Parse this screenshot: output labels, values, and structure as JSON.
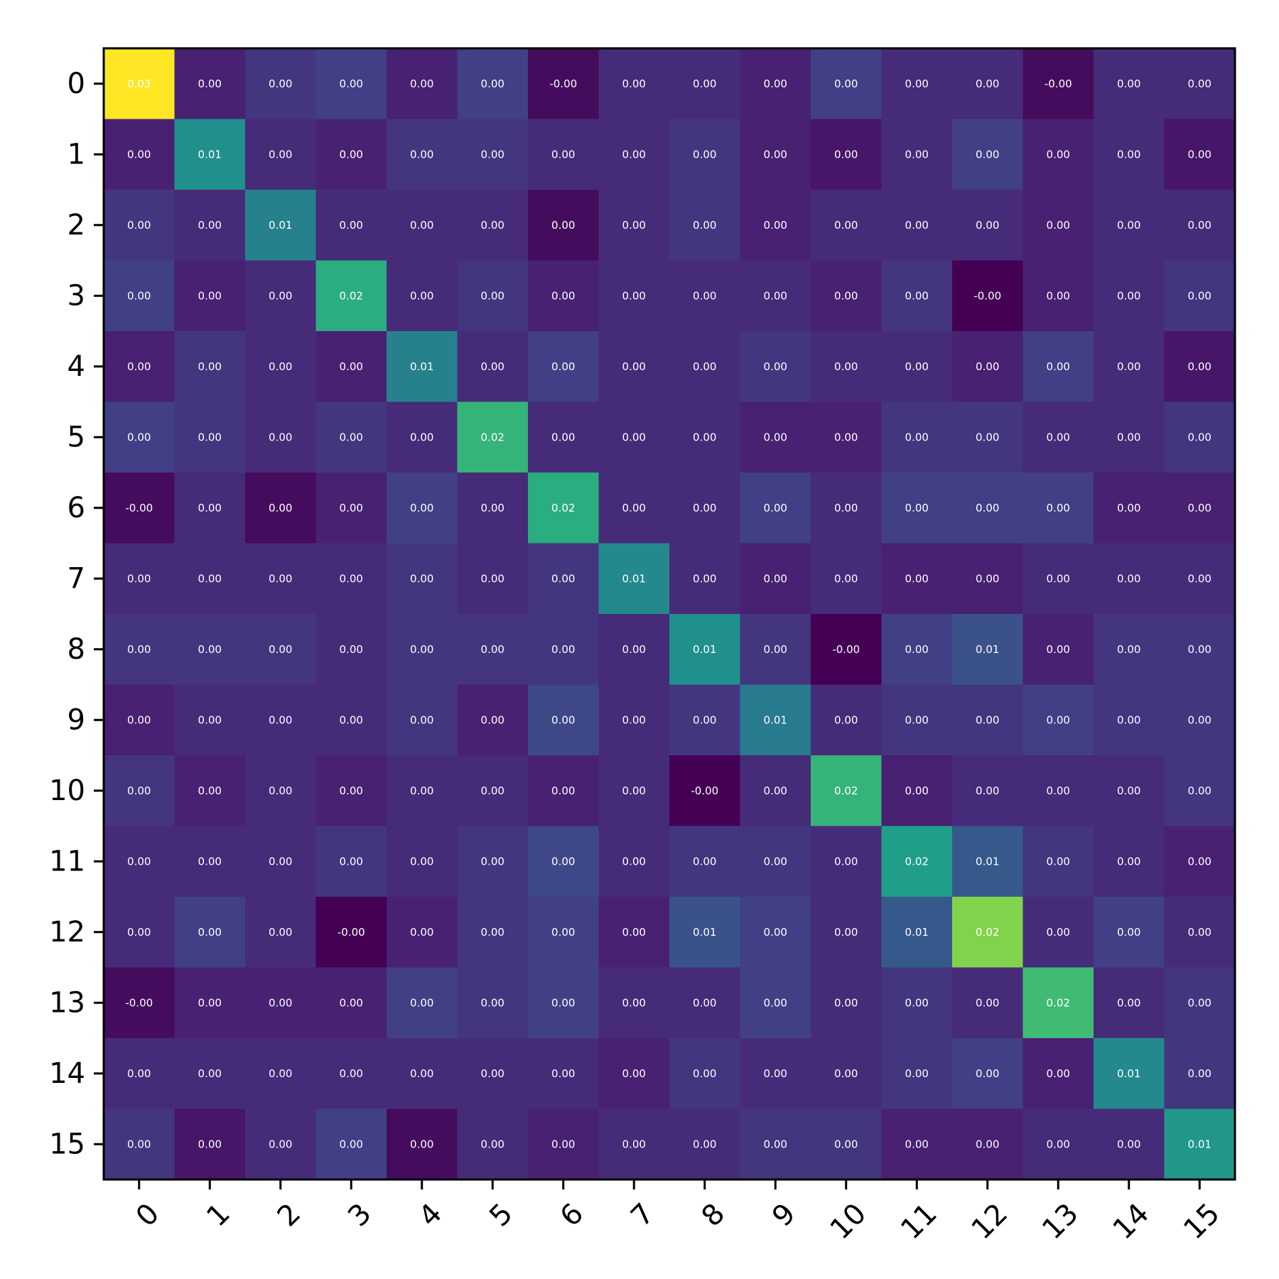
{
  "chart_data": {
    "type": "heatmap",
    "title": "",
    "xlabel": "",
    "ylabel": "",
    "x_categories": [
      "0",
      "1",
      "2",
      "3",
      "4",
      "5",
      "6",
      "7",
      "8",
      "9",
      "10",
      "11",
      "12",
      "13",
      "14",
      "15"
    ],
    "y_categories": [
      "0",
      "1",
      "2",
      "3",
      "4",
      "5",
      "6",
      "7",
      "8",
      "9",
      "10",
      "11",
      "12",
      "13",
      "14",
      "15"
    ],
    "colormap": "viridis",
    "color_range": [
      -0.002,
      0.03
    ],
    "value_format": "2 decimals",
    "values": [
      [
        0.03,
        0.001,
        0.003,
        0.004,
        0.001,
        0.004,
        -0.001,
        0.002,
        0.002,
        0.001,
        0.004,
        0.002,
        0.002,
        -0.001,
        0.002,
        0.002
      ],
      [
        0.001,
        0.014,
        0.002,
        0.001,
        0.003,
        0.003,
        0.002,
        0.002,
        0.003,
        0.001,
        0.0,
        0.002,
        0.004,
        0.001,
        0.002,
        0.0
      ],
      [
        0.003,
        0.002,
        0.012,
        0.002,
        0.002,
        0.002,
        -0.001,
        0.002,
        0.003,
        0.001,
        0.002,
        0.002,
        0.002,
        0.001,
        0.002,
        0.002
      ],
      [
        0.004,
        0.001,
        0.002,
        0.018,
        0.002,
        0.003,
        0.001,
        0.002,
        0.002,
        0.002,
        0.001,
        0.003,
        -0.002,
        0.001,
        0.002,
        0.003
      ],
      [
        0.001,
        0.003,
        0.002,
        0.001,
        0.012,
        0.002,
        0.004,
        0.002,
        0.002,
        0.003,
        0.002,
        0.002,
        0.001,
        0.004,
        0.002,
        0.0
      ],
      [
        0.004,
        0.003,
        0.002,
        0.003,
        0.002,
        0.019,
        0.002,
        0.002,
        0.002,
        0.001,
        0.001,
        0.003,
        0.003,
        0.002,
        0.002,
        0.003
      ],
      [
        -0.001,
        0.002,
        -0.001,
        0.001,
        0.004,
        0.002,
        0.018,
        0.002,
        0.002,
        0.004,
        0.002,
        0.004,
        0.004,
        0.004,
        0.001,
        0.001
      ],
      [
        0.002,
        0.002,
        0.002,
        0.002,
        0.003,
        0.002,
        0.003,
        0.013,
        0.002,
        0.001,
        0.002,
        0.001,
        0.001,
        0.002,
        0.002,
        0.002
      ],
      [
        0.003,
        0.003,
        0.003,
        0.002,
        0.003,
        0.003,
        0.003,
        0.002,
        0.014,
        0.003,
        -0.002,
        0.004,
        0.006,
        0.001,
        0.003,
        0.003
      ],
      [
        0.001,
        0.002,
        0.002,
        0.002,
        0.003,
        0.001,
        0.005,
        0.002,
        0.003,
        0.011,
        0.002,
        0.003,
        0.003,
        0.004,
        0.003,
        0.003
      ],
      [
        0.003,
        0.001,
        0.002,
        0.001,
        0.002,
        0.002,
        0.001,
        0.002,
        -0.002,
        0.002,
        0.019,
        0.001,
        0.002,
        0.002,
        0.002,
        0.003
      ],
      [
        0.002,
        0.002,
        0.002,
        0.003,
        0.002,
        0.003,
        0.005,
        0.002,
        0.003,
        0.003,
        0.002,
        0.016,
        0.007,
        0.003,
        0.002,
        0.001
      ],
      [
        0.002,
        0.004,
        0.002,
        -0.002,
        0.001,
        0.003,
        0.004,
        0.001,
        0.006,
        0.004,
        0.002,
        0.007,
        0.024,
        0.002,
        0.004,
        0.002
      ],
      [
        -0.001,
        0.001,
        0.001,
        0.001,
        0.004,
        0.003,
        0.004,
        0.002,
        0.002,
        0.004,
        0.002,
        0.003,
        0.002,
        0.02,
        0.002,
        0.003
      ],
      [
        0.002,
        0.002,
        0.002,
        0.002,
        0.002,
        0.002,
        0.002,
        0.001,
        0.003,
        0.002,
        0.002,
        0.003,
        0.004,
        0.001,
        0.013,
        0.003
      ],
      [
        0.003,
        0.0,
        0.002,
        0.004,
        -0.001,
        0.002,
        0.001,
        0.002,
        0.002,
        0.003,
        0.003,
        0.001,
        0.001,
        0.002,
        0.002,
        0.015
      ]
    ],
    "cell_labels": [
      [
        "0.03",
        "0.00",
        "0.00",
        "0.00",
        "0.00",
        "0.00",
        "-0.00",
        "0.00",
        "0.00",
        "0.00",
        "0.00",
        "0.00",
        "0.00",
        "-0.00",
        "0.00",
        "0.00"
      ],
      [
        "0.00",
        "0.01",
        "0.00",
        "0.00",
        "0.00",
        "0.00",
        "0.00",
        "0.00",
        "0.00",
        "0.00",
        "0.00",
        "0.00",
        "0.00",
        "0.00",
        "0.00",
        "0.00"
      ],
      [
        "0.00",
        "0.00",
        "0.01",
        "0.00",
        "0.00",
        "0.00",
        "0.00",
        "0.00",
        "0.00",
        "0.00",
        "0.00",
        "0.00",
        "0.00",
        "0.00",
        "0.00",
        "0.00"
      ],
      [
        "0.00",
        "0.00",
        "0.00",
        "0.02",
        "0.00",
        "0.00",
        "0.00",
        "0.00",
        "0.00",
        "0.00",
        "0.00",
        "0.00",
        "-0.00",
        "0.00",
        "0.00",
        "0.00"
      ],
      [
        "0.00",
        "0.00",
        "0.00",
        "0.00",
        "0.01",
        "0.00",
        "0.00",
        "0.00",
        "0.00",
        "0.00",
        "0.00",
        "0.00",
        "0.00",
        "0.00",
        "0.00",
        "0.00"
      ],
      [
        "0.00",
        "0.00",
        "0.00",
        "0.00",
        "0.00",
        "0.02",
        "0.00",
        "0.00",
        "0.00",
        "0.00",
        "0.00",
        "0.00",
        "0.00",
        "0.00",
        "0.00",
        "0.00"
      ],
      [
        "-0.00",
        "0.00",
        "0.00",
        "0.00",
        "0.00",
        "0.00",
        "0.02",
        "0.00",
        "0.00",
        "0.00",
        "0.00",
        "0.00",
        "0.00",
        "0.00",
        "0.00",
        "0.00"
      ],
      [
        "0.00",
        "0.00",
        "0.00",
        "0.00",
        "0.00",
        "0.00",
        "0.00",
        "0.01",
        "0.00",
        "0.00",
        "0.00",
        "0.00",
        "0.00",
        "0.00",
        "0.00",
        "0.00"
      ],
      [
        "0.00",
        "0.00",
        "0.00",
        "0.00",
        "0.00",
        "0.00",
        "0.00",
        "0.00",
        "0.01",
        "0.00",
        "-0.00",
        "0.00",
        "0.01",
        "0.00",
        "0.00",
        "0.00"
      ],
      [
        "0.00",
        "0.00",
        "0.00",
        "0.00",
        "0.00",
        "0.00",
        "0.00",
        "0.00",
        "0.00",
        "0.01",
        "0.00",
        "0.00",
        "0.00",
        "0.00",
        "0.00",
        "0.00"
      ],
      [
        "0.00",
        "0.00",
        "0.00",
        "0.00",
        "0.00",
        "0.00",
        "0.00",
        "0.00",
        "-0.00",
        "0.00",
        "0.02",
        "0.00",
        "0.00",
        "0.00",
        "0.00",
        "0.00"
      ],
      [
        "0.00",
        "0.00",
        "0.00",
        "0.00",
        "0.00",
        "0.00",
        "0.00",
        "0.00",
        "0.00",
        "0.00",
        "0.00",
        "0.02",
        "0.01",
        "0.00",
        "0.00",
        "0.00"
      ],
      [
        "0.00",
        "0.00",
        "0.00",
        "-0.00",
        "0.00",
        "0.00",
        "0.00",
        "0.00",
        "0.01",
        "0.00",
        "0.00",
        "0.01",
        "0.02",
        "0.00",
        "0.00",
        "0.00"
      ],
      [
        "-0.00",
        "0.00",
        "0.00",
        "0.00",
        "0.00",
        "0.00",
        "0.00",
        "0.00",
        "0.00",
        "0.00",
        "0.00",
        "0.00",
        "0.00",
        "0.02",
        "0.00",
        "0.00"
      ],
      [
        "0.00",
        "0.00",
        "0.00",
        "0.00",
        "0.00",
        "0.00",
        "0.00",
        "0.00",
        "0.00",
        "0.00",
        "0.00",
        "0.00",
        "0.00",
        "0.00",
        "0.01",
        "0.00"
      ],
      [
        "0.00",
        "0.00",
        "0.00",
        "0.00",
        "0.00",
        "0.00",
        "0.00",
        "0.00",
        "0.00",
        "0.00",
        "0.00",
        "0.00",
        "0.00",
        "0.00",
        "0.00",
        "0.01"
      ]
    ],
    "colorbar": false,
    "grid": false,
    "legend": "none"
  }
}
